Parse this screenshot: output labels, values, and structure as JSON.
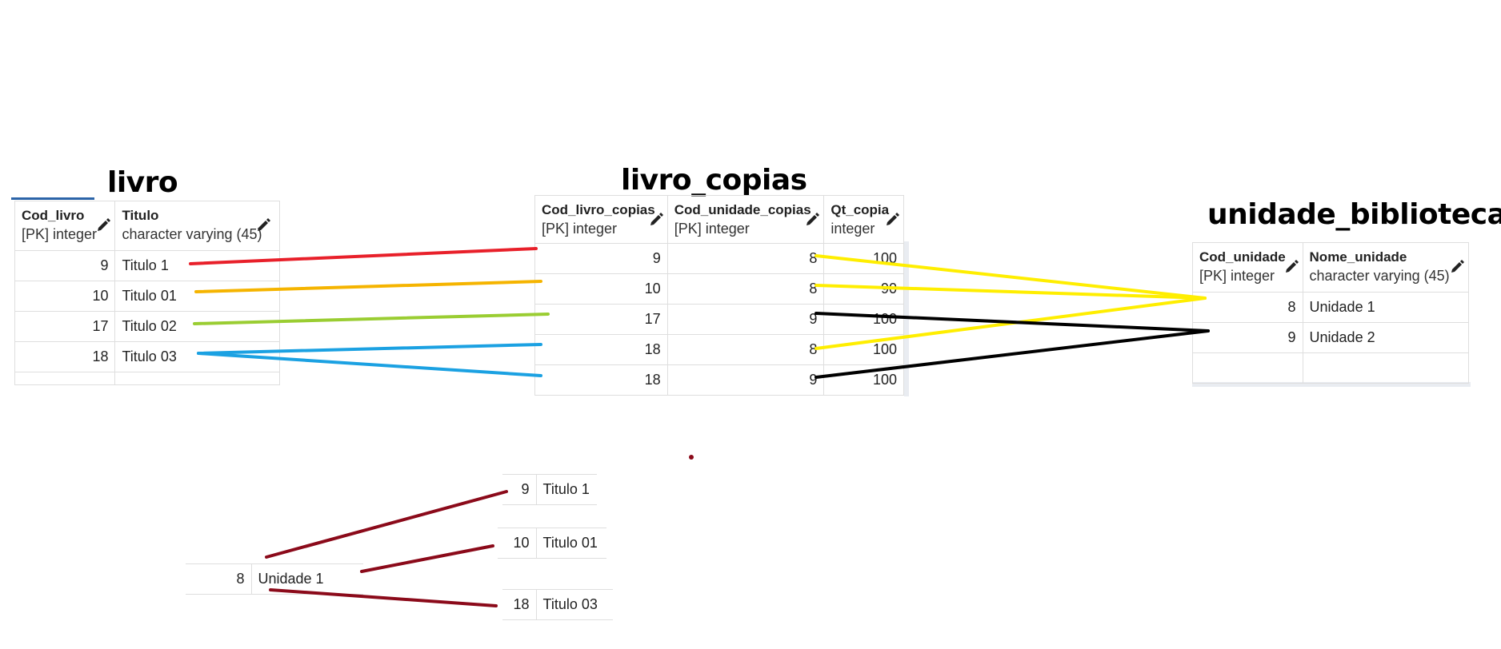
{
  "tables": {
    "livro": {
      "title": "livro",
      "columns": [
        {
          "name": "Cod_livro",
          "type": "[PK] integer"
        },
        {
          "name": "Titulo",
          "type": "character varying (45)"
        }
      ],
      "rows": [
        [
          "9",
          "Titulo 1"
        ],
        [
          "10",
          "Titulo 01"
        ],
        [
          "17",
          "Titulo 02"
        ],
        [
          "18",
          "Titulo 03"
        ]
      ]
    },
    "livro_copias": {
      "title": "livro_copias",
      "columns": [
        {
          "name": "Cod_livro_copias",
          "type": "[PK] integer"
        },
        {
          "name": "Cod_unidade_copias",
          "type": "[PK] integer"
        },
        {
          "name": "Qt_copia",
          "type": "integer"
        }
      ],
      "rows": [
        [
          "9",
          "8",
          "100"
        ],
        [
          "10",
          "8",
          "90"
        ],
        [
          "17",
          "9",
          "100"
        ],
        [
          "18",
          "8",
          "100"
        ],
        [
          "18",
          "9",
          "100"
        ]
      ]
    },
    "unidade_biblioteca": {
      "title": "unidade_biblioteca",
      "columns": [
        {
          "name": "Cod_unidade",
          "type": "[PK] integer"
        },
        {
          "name": "Nome_unidade",
          "type": "character varying (45)"
        }
      ],
      "rows": [
        [
          "8",
          "Unidade 1"
        ],
        [
          "9",
          "Unidade 2"
        ],
        [
          "",
          ""
        ]
      ]
    }
  },
  "result": {
    "unit_row": [
      "8",
      "Unidade 1"
    ],
    "book_rows": [
      [
        "9",
        "Titulo 1"
      ],
      [
        "10",
        "Titulo 01"
      ],
      [
        "18",
        "Titulo 03"
      ]
    ]
  },
  "colors": {
    "red": "#e8202a",
    "orange": "#f5b400",
    "green": "#9acd32",
    "blue": "#1ba1e2",
    "yellow": "#ffee00",
    "black": "#000000",
    "darkred": "#8b0a1a"
  }
}
